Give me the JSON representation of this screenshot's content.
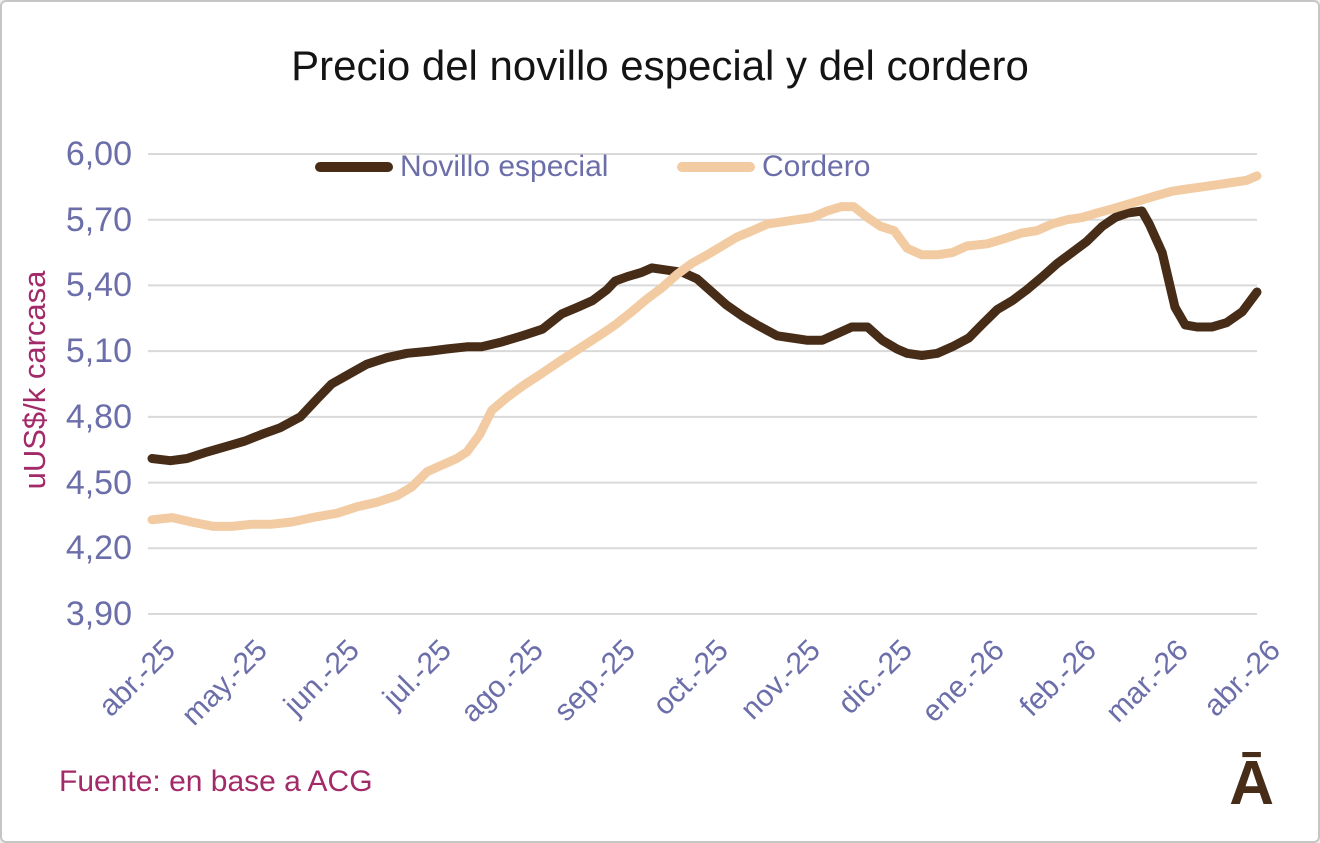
{
  "title": "Precio del novillo especial y del cordero",
  "source_note": "Fuente: en base a ACG",
  "logo_glyph": "Ā",
  "colors": {
    "title_text": "#141414",
    "axis_text": "#6b6ea9",
    "magenta_text": "#a32a68",
    "gridline": "#d9d9d9",
    "novillo_line": "#472c17",
    "cordero_line": "#f2cba2",
    "frame_border": "#c6c6c6",
    "background": "#ffffff"
  },
  "chart_data": {
    "type": "line",
    "title": "Precio del novillo especial y del cordero",
    "xlabel": "",
    "ylabel": "uUS$/k carcasa",
    "ylim": [
      3.9,
      6.0
    ],
    "ytick_step": 0.3,
    "y_ticks": [
      {
        "label": "6,00",
        "value": 6.0
      },
      {
        "label": "5,70",
        "value": 5.7
      },
      {
        "label": "5,40",
        "value": 5.4
      },
      {
        "label": "5,10",
        "value": 5.1
      },
      {
        "label": "4,80",
        "value": 4.8
      },
      {
        "label": "4,50",
        "value": 4.5
      },
      {
        "label": "4,20",
        "value": 4.2
      },
      {
        "label": "3,90",
        "value": 3.9
      }
    ],
    "x_ticks": [
      "abr.-25",
      "may.-25",
      "jun.-25",
      "jul.-25",
      "ago.-25",
      "sep.-25",
      "oct.-25",
      "nov.-25",
      "dic.-25",
      "ene.-26",
      "feb.-26",
      "mar.-26",
      "abr.-26"
    ],
    "x_unit": "months since abr.-25 (weekly price observations)",
    "grid": "horizontal",
    "legend_position": "top-center",
    "series": [
      {
        "name": "Novillo especial",
        "color": "#472c17",
        "points": [
          [
            0,
            4.61
          ],
          [
            0.2,
            4.6
          ],
          [
            0.38,
            4.61
          ],
          [
            0.6,
            4.64
          ],
          [
            0.85,
            4.67
          ],
          [
            1.01,
            4.69
          ],
          [
            1.19,
            4.72
          ],
          [
            1.39,
            4.75
          ],
          [
            1.61,
            4.8
          ],
          [
            1.79,
            4.88
          ],
          [
            1.95,
            4.95
          ],
          [
            2.12,
            4.99
          ],
          [
            2.33,
            5.04
          ],
          [
            2.55,
            5.07
          ],
          [
            2.77,
            5.09
          ],
          [
            3.02,
            5.1
          ],
          [
            3.2,
            5.11
          ],
          [
            3.42,
            5.12
          ],
          [
            3.58,
            5.12
          ],
          [
            3.78,
            5.14
          ],
          [
            4.02,
            5.17
          ],
          [
            4.24,
            5.2
          ],
          [
            4.45,
            5.27
          ],
          [
            4.62,
            5.3
          ],
          [
            4.78,
            5.33
          ],
          [
            4.94,
            5.38
          ],
          [
            5.03,
            5.42
          ],
          [
            5.16,
            5.44
          ],
          [
            5.32,
            5.46
          ],
          [
            5.43,
            5.48
          ],
          [
            5.59,
            5.47
          ],
          [
            5.76,
            5.46
          ],
          [
            5.92,
            5.43
          ],
          [
            6.08,
            5.37
          ],
          [
            6.24,
            5.31
          ],
          [
            6.41,
            5.26
          ],
          [
            6.57,
            5.22
          ],
          [
            6.79,
            5.17
          ],
          [
            6.95,
            5.16
          ],
          [
            7.11,
            5.15
          ],
          [
            7.28,
            5.15
          ],
          [
            7.44,
            5.18
          ],
          [
            7.6,
            5.21
          ],
          [
            7.77,
            5.21
          ],
          [
            7.93,
            5.15
          ],
          [
            8.09,
            5.11
          ],
          [
            8.2,
            5.09
          ],
          [
            8.36,
            5.08
          ],
          [
            8.53,
            5.09
          ],
          [
            8.69,
            5.12
          ],
          [
            8.87,
            5.16
          ],
          [
            9.01,
            5.22
          ],
          [
            9.18,
            5.29
          ],
          [
            9.34,
            5.33
          ],
          [
            9.5,
            5.38
          ],
          [
            9.67,
            5.44
          ],
          [
            9.83,
            5.5
          ],
          [
            9.99,
            5.55
          ],
          [
            10.15,
            5.6
          ],
          [
            10.32,
            5.67
          ],
          [
            10.46,
            5.71
          ],
          [
            10.59,
            5.73
          ],
          [
            10.75,
            5.74
          ],
          [
            10.83,
            5.68
          ],
          [
            10.97,
            5.55
          ],
          [
            11.11,
            5.3
          ],
          [
            11.22,
            5.22
          ],
          [
            11.35,
            5.21
          ],
          [
            11.51,
            5.21
          ],
          [
            11.67,
            5.23
          ],
          [
            11.84,
            5.28
          ],
          [
            12,
            5.37
          ]
        ]
      },
      {
        "name": "Cordero",
        "color": "#f2cba2",
        "points": [
          [
            0,
            4.33
          ],
          [
            0.22,
            4.34
          ],
          [
            0.43,
            4.32
          ],
          [
            0.67,
            4.3
          ],
          [
            0.87,
            4.3
          ],
          [
            1.09,
            4.31
          ],
          [
            1.3,
            4.31
          ],
          [
            1.52,
            4.32
          ],
          [
            1.74,
            4.34
          ],
          [
            2.01,
            4.36
          ],
          [
            2.23,
            4.39
          ],
          [
            2.44,
            4.41
          ],
          [
            2.66,
            4.44
          ],
          [
            2.82,
            4.48
          ],
          [
            2.99,
            4.55
          ],
          [
            3.15,
            4.58
          ],
          [
            3.31,
            4.61
          ],
          [
            3.42,
            4.64
          ],
          [
            3.56,
            4.72
          ],
          [
            3.69,
            4.83
          ],
          [
            3.86,
            4.89
          ],
          [
            4.02,
            4.94
          ],
          [
            4.24,
            5.0
          ],
          [
            4.45,
            5.06
          ],
          [
            4.67,
            5.12
          ],
          [
            4.89,
            5.18
          ],
          [
            5.03,
            5.22
          ],
          [
            5.21,
            5.28
          ],
          [
            5.38,
            5.34
          ],
          [
            5.54,
            5.39
          ],
          [
            5.7,
            5.45
          ],
          [
            5.86,
            5.5
          ],
          [
            6.03,
            5.54
          ],
          [
            6.19,
            5.58
          ],
          [
            6.35,
            5.62
          ],
          [
            6.52,
            5.65
          ],
          [
            6.68,
            5.68
          ],
          [
            6.84,
            5.69
          ],
          [
            7.0,
            5.7
          ],
          [
            7.17,
            5.71
          ],
          [
            7.33,
            5.74
          ],
          [
            7.49,
            5.76
          ],
          [
            7.62,
            5.76
          ],
          [
            7.77,
            5.71
          ],
          [
            7.91,
            5.67
          ],
          [
            8.06,
            5.65
          ],
          [
            8.2,
            5.57
          ],
          [
            8.36,
            5.54
          ],
          [
            8.53,
            5.54
          ],
          [
            8.69,
            5.55
          ],
          [
            8.85,
            5.58
          ],
          [
            9.07,
            5.59
          ],
          [
            9.23,
            5.61
          ],
          [
            9.45,
            5.64
          ],
          [
            9.61,
            5.65
          ],
          [
            9.77,
            5.68
          ],
          [
            9.94,
            5.7
          ],
          [
            10.1,
            5.71
          ],
          [
            10.26,
            5.73
          ],
          [
            10.43,
            5.75
          ],
          [
            10.59,
            5.77
          ],
          [
            10.75,
            5.79
          ],
          [
            10.91,
            5.81
          ],
          [
            11.08,
            5.83
          ],
          [
            11.24,
            5.84
          ],
          [
            11.4,
            5.85
          ],
          [
            11.57,
            5.86
          ],
          [
            11.73,
            5.87
          ],
          [
            11.89,
            5.88
          ],
          [
            12,
            5.9
          ]
        ]
      }
    ]
  }
}
